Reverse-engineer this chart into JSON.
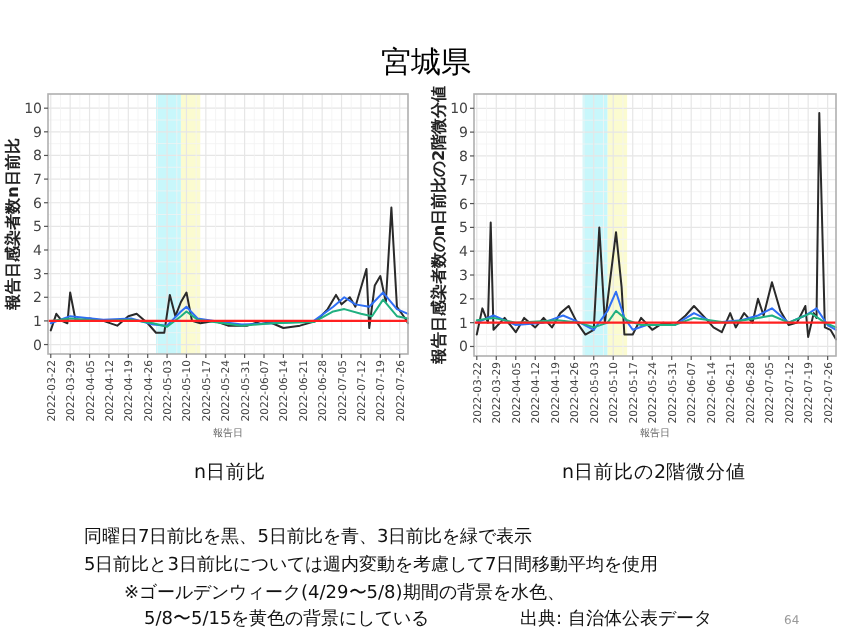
{
  "chart_data": [
    {
      "type": "line",
      "title": "n日前比",
      "xlabel": "報告日",
      "ylabel": "報告日感染者数n日前比",
      "xlim": [
        "2022-03-21",
        "2022-07-29"
      ],
      "ylim": [
        -0.4,
        10.6
      ],
      "xticks": [
        "2022-03-22",
        "2022-03-29",
        "2022-04-05",
        "2022-04-12",
        "2022-04-19",
        "2022-04-26",
        "2022-05-03",
        "2022-05-10",
        "2022-05-17",
        "2022-05-24",
        "2022-05-31",
        "2022-06-07",
        "2022-06-14",
        "2022-06-21",
        "2022-06-28",
        "2022-07-05",
        "2022-07-12",
        "2022-07-19",
        "2022-07-26"
      ],
      "yticks": [
        0,
        1,
        2,
        3,
        4,
        5,
        6,
        7,
        8,
        9,
        10
      ],
      "grid": true,
      "bands": [
        {
          "axis": "x",
          "from": "2022-04-29",
          "to": "2022-05-08",
          "color": "#c8f7fb"
        },
        {
          "axis": "x",
          "from": "2022-05-08",
          "to": "2022-05-15",
          "color": "#fbfbd0"
        }
      ],
      "ref_lines": [
        {
          "axis": "y",
          "value": 1,
          "color": "#ff2020"
        }
      ],
      "series": [
        {
          "color": "#2a2a2a",
          "x": [
            "2022-03-22",
            "2022-03-24",
            "2022-03-26",
            "2022-03-28",
            "2022-03-29",
            "2022-03-31",
            "2022-04-05",
            "2022-04-10",
            "2022-04-15",
            "2022-04-19",
            "2022-04-22",
            "2022-04-26",
            "2022-04-29",
            "2022-05-02",
            "2022-05-04",
            "2022-05-06",
            "2022-05-08",
            "2022-05-10",
            "2022-05-12",
            "2022-05-15",
            "2022-05-20",
            "2022-05-25",
            "2022-06-01",
            "2022-06-06",
            "2022-06-10",
            "2022-06-14",
            "2022-06-20",
            "2022-06-26",
            "2022-06-30",
            "2022-07-03",
            "2022-07-05",
            "2022-07-08",
            "2022-07-10",
            "2022-07-14",
            "2022-07-15",
            "2022-07-17",
            "2022-07-19",
            "2022-07-21",
            "2022-07-23",
            "2022-07-25",
            "2022-07-28",
            "2022-07-29"
          ],
          "values": [
            0.6,
            1.3,
            1.0,
            0.9,
            2.2,
            1.0,
            1.1,
            1.0,
            0.8,
            1.2,
            1.3,
            0.9,
            0.5,
            0.5,
            2.1,
            1.2,
            1.8,
            2.2,
            1.0,
            0.9,
            1.0,
            0.8,
            0.8,
            1.0,
            0.9,
            0.7,
            0.8,
            1.0,
            1.5,
            2.1,
            1.7,
            2.0,
            1.6,
            3.2,
            0.7,
            2.5,
            2.9,
            1.8,
            5.8,
            1.6,
            1.1,
            0.9
          ]
        },
        {
          "color": "#2f6ff5",
          "x": [
            "2022-03-22",
            "2022-03-29",
            "2022-04-10",
            "2022-04-20",
            "2022-04-28",
            "2022-05-03",
            "2022-05-08",
            "2022-05-10",
            "2022-05-14",
            "2022-05-20",
            "2022-05-30",
            "2022-06-10",
            "2022-06-25",
            "2022-07-02",
            "2022-07-06",
            "2022-07-10",
            "2022-07-15",
            "2022-07-20",
            "2022-07-25",
            "2022-07-29"
          ],
          "values": [
            0.9,
            1.2,
            1.05,
            1.1,
            0.85,
            0.8,
            1.4,
            1.6,
            1.1,
            1.0,
            0.85,
            0.9,
            1.0,
            1.6,
            2.0,
            1.7,
            1.6,
            2.2,
            1.5,
            1.3
          ]
        },
        {
          "color": "#20b080",
          "x": [
            "2022-03-22",
            "2022-03-29",
            "2022-04-10",
            "2022-04-20",
            "2022-04-28",
            "2022-05-03",
            "2022-05-08",
            "2022-05-10",
            "2022-05-14",
            "2022-05-20",
            "2022-05-30",
            "2022-06-10",
            "2022-06-25",
            "2022-07-02",
            "2022-07-06",
            "2022-07-12",
            "2022-07-16",
            "2022-07-20",
            "2022-07-25",
            "2022-07-29"
          ],
          "values": [
            1.0,
            1.1,
            1.0,
            1.05,
            0.9,
            0.75,
            1.2,
            1.4,
            1.05,
            0.95,
            0.8,
            0.9,
            0.95,
            1.4,
            1.5,
            1.3,
            1.2,
            1.9,
            1.2,
            1.1
          ]
        }
      ],
      "annotations": [
        "宮城県",
        "同曜日7日前比を黒、5日前比を青、3日前比を緑で表示",
        "5日前比と3日前比については週内変動を考慮して7日間移動平均を使用",
        "※ゴールデンウィーク(4/29〜5/8)期間の背景を水色、",
        "5/8〜5/15を黄色の背景にしている",
        "出典: 自治体公表データ",
        "64"
      ]
    },
    {
      "type": "line",
      "title": "n日前比の2階微分値",
      "xlabel": "報告日",
      "ylabel": "報告日感染者数のn日前比の2階微分値",
      "xlim": [
        "2022-03-21",
        "2022-07-29"
      ],
      "ylim": [
        -0.4,
        10.6
      ],
      "xticks": [
        "2022-03-22",
        "2022-03-29",
        "2022-04-05",
        "2022-04-12",
        "2022-04-19",
        "2022-04-26",
        "2022-05-03",
        "2022-05-10",
        "2022-05-17",
        "2022-05-24",
        "2022-05-31",
        "2022-06-07",
        "2022-06-14",
        "2022-06-21",
        "2022-06-28",
        "2022-07-05",
        "2022-07-12",
        "2022-07-19",
        "2022-07-26"
      ],
      "yticks": [
        0,
        1,
        2,
        3,
        4,
        5,
        6,
        7,
        8,
        9,
        10
      ],
      "grid": true,
      "bands": [
        {
          "axis": "x",
          "from": "2022-04-29",
          "to": "2022-05-08",
          "color": "#c8f7fb"
        },
        {
          "axis": "x",
          "from": "2022-05-08",
          "to": "2022-05-15",
          "color": "#fbfbd0"
        }
      ],
      "ref_lines": [
        {
          "axis": "y",
          "value": 1,
          "color": "#ff2020"
        }
      ],
      "series": [
        {
          "color": "#2a2a2a",
          "x": [
            "2022-03-22",
            "2022-03-24",
            "2022-03-26",
            "2022-03-27",
            "2022-03-28",
            "2022-04-01",
            "2022-04-05",
            "2022-04-08",
            "2022-04-12",
            "2022-04-15",
            "2022-04-18",
            "2022-04-21",
            "2022-04-24",
            "2022-04-27",
            "2022-04-30",
            "2022-05-03",
            "2022-05-05",
            "2022-05-07",
            "2022-05-11",
            "2022-05-13",
            "2022-05-14",
            "2022-05-17",
            "2022-05-20",
            "2022-05-24",
            "2022-05-28",
            "2022-06-01",
            "2022-06-05",
            "2022-06-08",
            "2022-06-12",
            "2022-06-15",
            "2022-06-18",
            "2022-06-21",
            "2022-06-23",
            "2022-06-26",
            "2022-06-29",
            "2022-07-01",
            "2022-07-03",
            "2022-07-06",
            "2022-07-09",
            "2022-07-12",
            "2022-07-15",
            "2022-07-18",
            "2022-07-19",
            "2022-07-21",
            "2022-07-22",
            "2022-07-23",
            "2022-07-25",
            "2022-07-27",
            "2022-07-29"
          ],
          "values": [
            0.5,
            1.6,
            1.0,
            5.2,
            0.7,
            1.2,
            0.6,
            1.2,
            0.8,
            1.2,
            0.8,
            1.4,
            1.7,
            1.0,
            0.5,
            0.7,
            5.0,
            1.0,
            4.8,
            2.5,
            0.5,
            0.5,
            1.2,
            0.7,
            1.0,
            0.9,
            1.3,
            1.7,
            1.2,
            0.8,
            0.6,
            1.4,
            0.8,
            1.4,
            1.0,
            2.0,
            1.3,
            2.7,
            1.5,
            0.9,
            1.0,
            1.7,
            0.4,
            1.4,
            1.2,
            9.8,
            0.8,
            0.7,
            0.3
          ]
        },
        {
          "color": "#2f6ff5",
          "x": [
            "2022-03-22",
            "2022-03-28",
            "2022-04-05",
            "2022-04-15",
            "2022-04-22",
            "2022-04-28",
            "2022-05-03",
            "2022-05-08",
            "2022-05-11",
            "2022-05-14",
            "2022-05-17",
            "2022-05-22",
            "2022-06-01",
            "2022-06-08",
            "2022-06-15",
            "2022-06-25",
            "2022-07-01",
            "2022-07-06",
            "2022-07-12",
            "2022-07-18",
            "2022-07-22",
            "2022-07-26",
            "2022-07-29"
          ],
          "values": [
            1.0,
            1.3,
            0.9,
            1.0,
            1.3,
            1.0,
            0.7,
            1.5,
            2.3,
            1.2,
            0.7,
            0.9,
            0.9,
            1.4,
            1.0,
            1.1,
            1.3,
            1.6,
            1.0,
            1.3,
            1.6,
            0.9,
            0.7
          ]
        },
        {
          "color": "#20b080",
          "x": [
            "2022-03-22",
            "2022-03-28",
            "2022-04-05",
            "2022-04-20",
            "2022-04-28",
            "2022-05-03",
            "2022-05-08",
            "2022-05-11",
            "2022-05-15",
            "2022-05-20",
            "2022-06-01",
            "2022-06-08",
            "2022-06-20",
            "2022-07-01",
            "2022-07-06",
            "2022-07-12",
            "2022-07-20",
            "2022-07-25",
            "2022-07-29"
          ],
          "values": [
            1.1,
            1.2,
            1.0,
            1.1,
            1.0,
            0.8,
            1.0,
            1.5,
            1.1,
            0.9,
            0.9,
            1.2,
            1.0,
            1.2,
            1.3,
            1.0,
            1.4,
            1.0,
            0.8
          ]
        }
      ]
    }
  ]
}
